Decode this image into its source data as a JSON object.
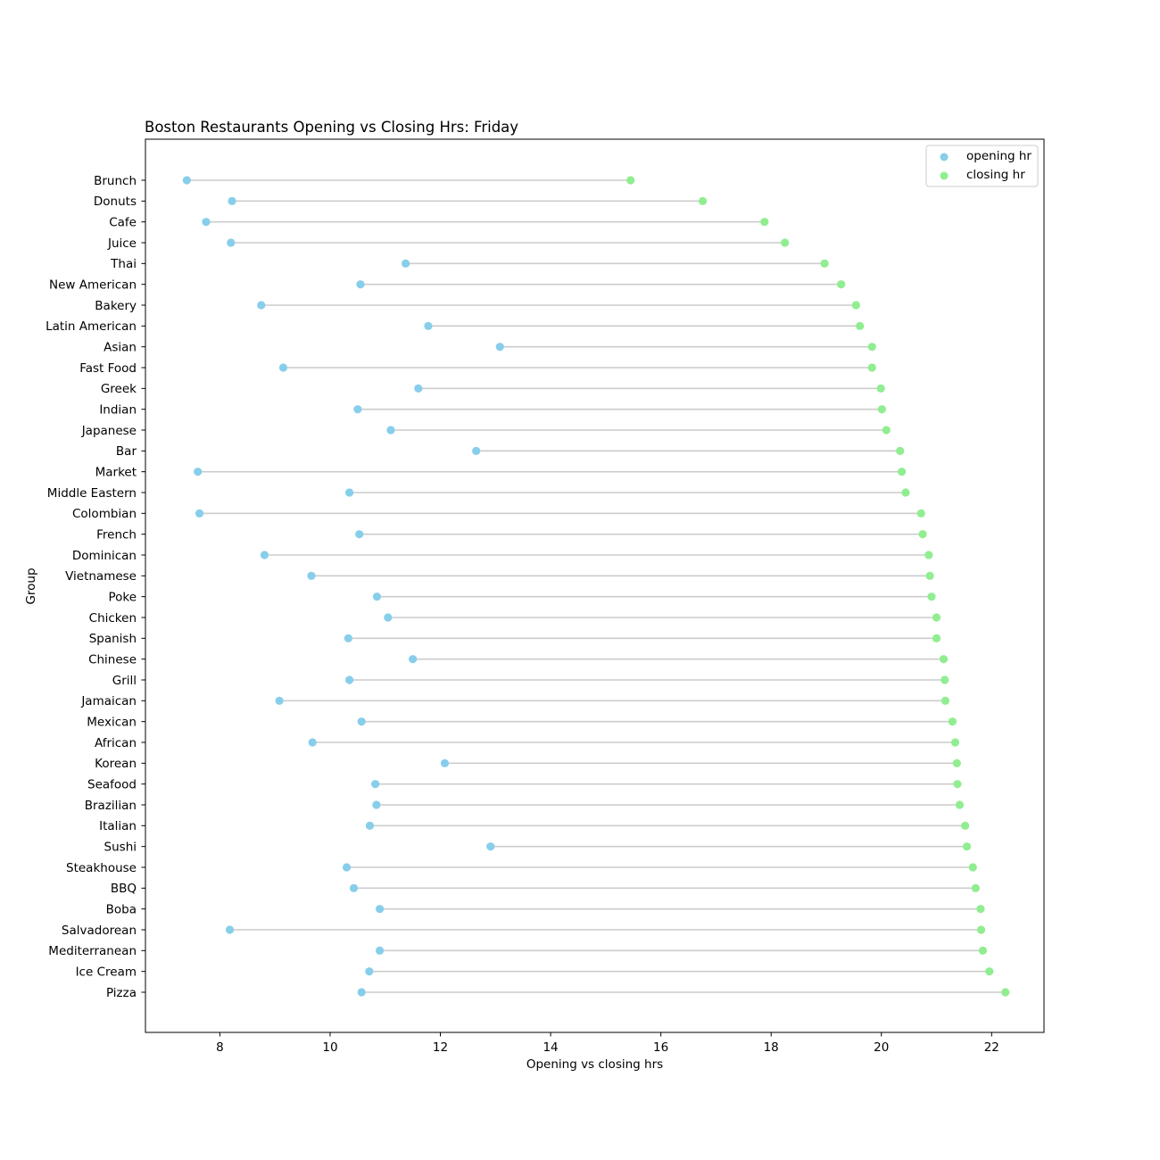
{
  "chart_data": {
    "type": "scatter",
    "subtype": "dumbbell",
    "title": "Boston Restaurants Opening vs Closing Hrs: Friday",
    "xlabel": "Opening vs closing hrs",
    "ylabel": "Group",
    "xlim": [
      6.65,
      22.95
    ],
    "xticks": [
      8,
      10,
      12,
      14,
      16,
      18,
      20,
      22
    ],
    "grid": false,
    "legend_position": "top-right",
    "categories": [
      "Brunch",
      "Donuts",
      "Cafe",
      "Juice",
      "Thai",
      "New American",
      "Bakery",
      "Latin American",
      "Asian",
      "Fast Food",
      "Greek",
      "Indian",
      "Japanese",
      "Bar",
      "Market",
      "Middle Eastern",
      "Colombian",
      "French",
      "Dominican",
      "Vietnamese",
      "Poke",
      "Chicken",
      "Spanish",
      "Chinese",
      "Grill",
      "Jamaican",
      "Mexican",
      "African",
      "Korean",
      "Seafood",
      "Brazilian",
      "Italian",
      "Sushi",
      "Steakhouse",
      "BBQ",
      "Boba",
      "Salvadorean",
      "Mediterranean",
      "Ice Cream",
      "Pizza"
    ],
    "series": [
      {
        "name": "opening hr",
        "color": "#87ceeb",
        "values": [
          7.4,
          8.22,
          7.75,
          8.2,
          11.37,
          10.55,
          8.75,
          11.78,
          13.08,
          9.15,
          11.6,
          10.5,
          11.1,
          12.65,
          7.6,
          10.35,
          7.63,
          10.53,
          8.81,
          9.66,
          10.85,
          11.05,
          10.33,
          11.5,
          10.35,
          9.08,
          10.57,
          9.68,
          12.08,
          10.82,
          10.84,
          10.72,
          12.91,
          10.3,
          10.43,
          10.9,
          8.18,
          10.9,
          10.71,
          10.57
        ]
      },
      {
        "name": "closing hr",
        "color": "#90ee90",
        "values": [
          15.45,
          16.76,
          17.88,
          18.25,
          18.97,
          19.27,
          19.54,
          19.61,
          19.83,
          19.83,
          19.99,
          20.01,
          20.09,
          20.34,
          20.37,
          20.44,
          20.72,
          20.75,
          20.86,
          20.88,
          20.91,
          21.0,
          21.0,
          21.13,
          21.15,
          21.16,
          21.29,
          21.34,
          21.37,
          21.38,
          21.42,
          21.52,
          21.55,
          21.66,
          21.71,
          21.8,
          21.81,
          21.84,
          21.96,
          22.25
        ]
      }
    ],
    "connector_color": "#cccccc"
  }
}
